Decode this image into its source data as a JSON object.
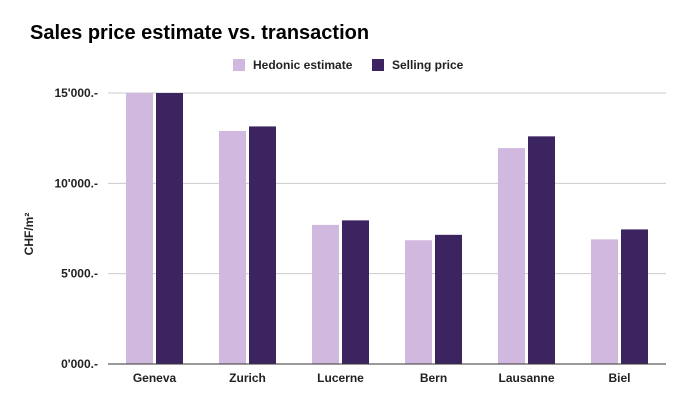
{
  "chart_data": {
    "type": "bar",
    "title": "Sales price estimate vs. transaction",
    "ylabel": "CHF/m²",
    "xlabel": "",
    "categories": [
      "Geneva",
      "Zurich",
      "Lucerne",
      "Bern",
      "Lausanne",
      "Biel"
    ],
    "series": [
      {
        "name": "Hedonic estimate",
        "color": "#d1b8de",
        "values": [
          15000,
          12900,
          7700,
          6850,
          11950,
          6900
        ]
      },
      {
        "name": "Selling price",
        "color": "#3c2461",
        "values": [
          15000,
          13150,
          7950,
          7150,
          12600,
          7450
        ]
      }
    ],
    "ylim": [
      0,
      15000
    ],
    "yticks": [
      0,
      5000,
      10000,
      15000
    ],
    "ytick_labels": [
      "0'000.-",
      "5'000.-",
      "10'000.-",
      "15'000.-"
    ],
    "grid": true,
    "legend_position": "top-center"
  }
}
